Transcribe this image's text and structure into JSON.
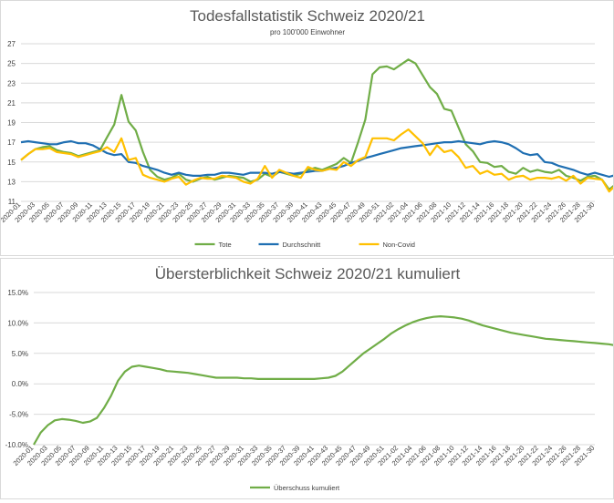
{
  "chart_data": [
    {
      "type": "line",
      "title": "Todesfallstatistik Schweiz 2020/21",
      "subtitle": "pro 100'000 Einwohner",
      "ylim": [
        11,
        27
      ],
      "yticks": [
        11,
        13,
        15,
        17,
        19,
        21,
        23,
        25,
        27
      ],
      "grid": true,
      "legend_position": "bottom",
      "x_tick_labels": [
        "2020-01",
        "2020-03",
        "2020-05",
        "2020-07",
        "2020-09",
        "2020-11",
        "2020-13",
        "2020-15",
        "2020-17",
        "2020-19",
        "2020-21",
        "2020-23",
        "2020-25",
        "2020-27",
        "2020-29",
        "2020-31",
        "2020-33",
        "2020-35",
        "2020-37",
        "2020-39",
        "2020-41",
        "2020-43",
        "2020-45",
        "2020-47",
        "2020-49",
        "2020-51",
        "2021-02",
        "2021-04",
        "2021-06",
        "2021-08",
        "2021-10",
        "2021-12",
        "2021-14",
        "2021-16",
        "2021-18",
        "2021-20",
        "2021-22",
        "2021-24",
        "2021-26",
        "2021-28",
        "2021-30"
      ],
      "series": [
        {
          "name": "Tote",
          "color": "#70ad47",
          "values": [
            15.2,
            15.8,
            16.3,
            16.5,
            16.6,
            16.2,
            16.0,
            15.9,
            15.6,
            15.8,
            16.0,
            16.2,
            17.5,
            18.8,
            21.8,
            19.1,
            18.2,
            16.0,
            14.2,
            13.5,
            13.2,
            13.4,
            13.8,
            13.2,
            13.0,
            13.3,
            13.5,
            13.2,
            13.4,
            13.6,
            13.5,
            13.4,
            13.0,
            13.2,
            13.8,
            13.5,
            14.0,
            13.8,
            13.6,
            13.8,
            14.2,
            14.4,
            14.2,
            14.5,
            14.8,
            15.4,
            14.9,
            17.0,
            19.3,
            23.9,
            24.6,
            24.7,
            24.4,
            24.9,
            25.4,
            25.0,
            23.8,
            22.6,
            21.9,
            20.4,
            20.2,
            18.5,
            16.8,
            16.1,
            15.0,
            14.9,
            14.5,
            14.6,
            14.0,
            13.8,
            14.4,
            14.0,
            14.2,
            14.0,
            13.9,
            14.2,
            13.6,
            13.4,
            13.1,
            13.5,
            13.6,
            13.2,
            12.2,
            12.8,
            12.8
          ]
        },
        {
          "name": "Durchschnitt",
          "color": "#1f6fb2",
          "values": [
            17.0,
            17.1,
            17.0,
            16.9,
            16.8,
            16.8,
            17.0,
            17.1,
            16.9,
            16.9,
            16.7,
            16.3,
            15.9,
            15.7,
            15.8,
            15.0,
            14.9,
            14.6,
            14.4,
            14.2,
            13.9,
            13.7,
            13.9,
            13.7,
            13.6,
            13.6,
            13.7,
            13.7,
            13.9,
            13.9,
            13.8,
            13.7,
            13.9,
            13.9,
            13.9,
            13.8,
            14.0,
            13.9,
            13.8,
            13.9,
            14.0,
            14.1,
            14.1,
            14.3,
            14.4,
            14.6,
            14.9,
            15.1,
            15.4,
            15.6,
            15.8,
            16.0,
            16.2,
            16.4,
            16.5,
            16.6,
            16.7,
            16.8,
            16.9,
            17.0,
            17.0,
            17.1,
            17.0,
            16.9,
            16.8,
            17.0,
            17.1,
            17.0,
            16.8,
            16.4,
            15.9,
            15.7,
            15.8,
            15.0,
            14.9,
            14.6,
            14.4,
            14.2,
            13.9,
            13.7,
            13.9,
            13.7,
            13.5,
            13.7,
            13.7
          ]
        },
        {
          "name": "Non-Covid",
          "color": "#ffc000",
          "values": [
            15.2,
            15.8,
            16.3,
            16.3,
            16.4,
            16.0,
            15.9,
            15.8,
            15.5,
            15.7,
            15.9,
            16.1,
            16.5,
            16.0,
            17.4,
            15.2,
            15.4,
            13.7,
            13.4,
            13.2,
            13.0,
            13.3,
            13.5,
            12.7,
            13.1,
            13.4,
            13.3,
            13.3,
            13.6,
            13.5,
            13.4,
            13.0,
            12.8,
            13.3,
            14.6,
            13.4,
            14.2,
            13.9,
            13.6,
            13.4,
            14.5,
            14.2,
            14.1,
            14.3,
            14.2,
            15.0,
            14.6,
            15.2,
            15.5,
            17.4,
            17.4,
            17.4,
            17.2,
            17.8,
            18.3,
            17.6,
            16.9,
            15.7,
            16.7,
            16.0,
            16.2,
            15.5,
            14.4,
            14.6,
            13.8,
            14.1,
            13.7,
            13.8,
            13.2,
            13.5,
            13.6,
            13.2,
            13.4,
            13.4,
            13.3,
            13.5,
            13.1,
            13.6,
            12.8,
            13.4,
            13.3,
            13.2,
            12.0,
            12.7,
            12.6
          ]
        }
      ]
    },
    {
      "type": "line",
      "title": "Übersterblichkeit Schweiz 2020/21 kumuliert",
      "ylim": [
        -10,
        15
      ],
      "yticks": [
        -10,
        -5,
        0,
        5,
        10,
        15
      ],
      "ytick_labels": [
        "-10.0%",
        "-5.0%",
        "0.0%",
        "5.0%",
        "10.0%",
        "15.0%"
      ],
      "grid": true,
      "legend_position": "bottom",
      "x_tick_labels": [
        "2020-01",
        "2020-03",
        "2020-05",
        "2020-07",
        "2020-09",
        "2020-11",
        "2020-13",
        "2020-15",
        "2020-17",
        "2020-19",
        "2020-21",
        "2020-23",
        "2020-25",
        "2020-27",
        "2020-29",
        "2020-31",
        "2020-33",
        "2020-35",
        "2020-37",
        "2020-39",
        "2020-41",
        "2020-43",
        "2020-45",
        "2020-47",
        "2020-49",
        "2020-51",
        "2021-02",
        "2021-04",
        "2021-06",
        "2021-08",
        "2021-10",
        "2021-12",
        "2021-14",
        "2021-16",
        "2021-18",
        "2021-20",
        "2021-22",
        "2021-24",
        "2021-26",
        "2021-28",
        "2021-30"
      ],
      "series": [
        {
          "name": "Überschuss kumuliert",
          "color": "#70ad47",
          "values": [
            -10.0,
            -8.0,
            -6.8,
            -6.0,
            -5.8,
            -5.9,
            -6.1,
            -6.4,
            -6.2,
            -5.6,
            -4.0,
            -2.0,
            0.5,
            2.0,
            2.8,
            3.0,
            2.8,
            2.6,
            2.4,
            2.1,
            2.0,
            1.9,
            1.8,
            1.6,
            1.4,
            1.2,
            1.0,
            1.0,
            1.0,
            1.0,
            0.9,
            0.9,
            0.8,
            0.8,
            0.8,
            0.8,
            0.8,
            0.8,
            0.8,
            0.8,
            0.8,
            0.9,
            1.0,
            1.3,
            2.0,
            3.0,
            4.0,
            5.0,
            5.8,
            6.6,
            7.4,
            8.3,
            9.0,
            9.6,
            10.1,
            10.5,
            10.8,
            11.0,
            11.1,
            11.0,
            10.9,
            10.7,
            10.4,
            10.0,
            9.6,
            9.3,
            9.0,
            8.7,
            8.4,
            8.2,
            8.0,
            7.8,
            7.6,
            7.4,
            7.3,
            7.2,
            7.1,
            7.0,
            6.9,
            6.8,
            6.7,
            6.6,
            6.5,
            6.3,
            6.2
          ]
        }
      ]
    }
  ]
}
